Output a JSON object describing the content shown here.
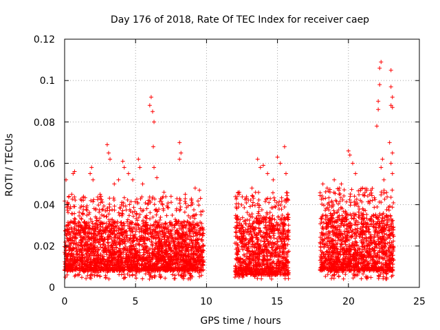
{
  "chart_data": {
    "type": "scatter",
    "title": "Day 176 of 2018, Rate Of TEC Index for receiver caep",
    "xlabel": "GPS time / hours",
    "ylabel": "ROTI / TECUs",
    "xlim": [
      0,
      25
    ],
    "ylim": [
      0,
      0.12
    ],
    "x_ticks": [
      "0",
      "5",
      "10",
      "15",
      "20",
      "25"
    ],
    "y_ticks": [
      "0",
      "0.02",
      "0.04",
      "0.06",
      "0.08",
      "0.1",
      "0.12"
    ],
    "grid": true,
    "marker": "+",
    "color": "#ff0000",
    "series": [
      {
        "name": "ROTI",
        "segments": [
          {
            "x_range": [
              0.0,
              9.8
            ],
            "typical_range": [
              0.008,
              0.032
            ]
          },
          {
            "x_range": [
              12.0,
              15.8
            ],
            "typical_range": [
              0.006,
              0.034
            ]
          },
          {
            "x_range": [
              18.0,
              23.2
            ],
            "typical_range": [
              0.008,
              0.036
            ]
          }
        ],
        "points": [
          [
            0.1,
            0.052
          ],
          [
            0.3,
            0.044
          ],
          [
            0.5,
            0.045
          ],
          [
            0.6,
            0.055
          ],
          [
            0.7,
            0.056
          ],
          [
            1.2,
            0.042
          ],
          [
            1.8,
            0.055
          ],
          [
            1.9,
            0.058
          ],
          [
            2.0,
            0.052
          ],
          [
            2.5,
            0.045
          ],
          [
            3.0,
            0.069
          ],
          [
            3.1,
            0.065
          ],
          [
            3.2,
            0.062
          ],
          [
            3.5,
            0.05
          ],
          [
            3.8,
            0.052
          ],
          [
            4.1,
            0.061
          ],
          [
            4.2,
            0.058
          ],
          [
            4.5,
            0.055
          ],
          [
            4.8,
            0.052
          ],
          [
            5.2,
            0.062
          ],
          [
            5.3,
            0.058
          ],
          [
            5.5,
            0.05
          ],
          [
            6.0,
            0.088
          ],
          [
            6.1,
            0.092
          ],
          [
            6.2,
            0.085
          ],
          [
            6.3,
            0.08
          ],
          [
            6.25,
            0.068
          ],
          [
            6.3,
            0.058
          ],
          [
            6.5,
            0.053
          ],
          [
            7.0,
            0.046
          ],
          [
            7.5,
            0.044
          ],
          [
            8.1,
            0.07
          ],
          [
            8.2,
            0.065
          ],
          [
            8.1,
            0.062
          ],
          [
            8.5,
            0.045
          ],
          [
            9.2,
            0.048
          ],
          [
            9.5,
            0.047
          ],
          [
            12.3,
            0.045
          ],
          [
            12.8,
            0.043
          ],
          [
            13.2,
            0.048
          ],
          [
            13.6,
            0.062
          ],
          [
            13.8,
            0.058
          ],
          [
            14.0,
            0.059
          ],
          [
            14.3,
            0.055
          ],
          [
            14.7,
            0.052
          ],
          [
            15.0,
            0.063
          ],
          [
            15.2,
            0.06
          ],
          [
            15.5,
            0.068
          ],
          [
            15.6,
            0.055
          ],
          [
            18.2,
            0.05
          ],
          [
            18.5,
            0.048
          ],
          [
            19.0,
            0.052
          ],
          [
            19.5,
            0.05
          ],
          [
            20.0,
            0.066
          ],
          [
            20.1,
            0.064
          ],
          [
            20.3,
            0.06
          ],
          [
            20.5,
            0.055
          ],
          [
            21.0,
            0.048
          ],
          [
            21.5,
            0.045
          ],
          [
            22.0,
            0.078
          ],
          [
            22.1,
            0.086
          ],
          [
            22.2,
            0.098
          ],
          [
            22.3,
            0.109
          ],
          [
            22.2,
            0.106
          ],
          [
            22.1,
            0.09
          ],
          [
            22.4,
            0.062
          ],
          [
            22.3,
            0.058
          ],
          [
            22.5,
            0.052
          ],
          [
            23.0,
            0.105
          ],
          [
            23.0,
            0.097
          ],
          [
            23.1,
            0.092
          ],
          [
            23.0,
            0.088
          ],
          [
            23.1,
            0.087
          ],
          [
            22.9,
            0.07
          ],
          [
            23.1,
            0.065
          ],
          [
            23.0,
            0.06
          ],
          [
            23.1,
            0.055
          ]
        ]
      }
    ]
  }
}
